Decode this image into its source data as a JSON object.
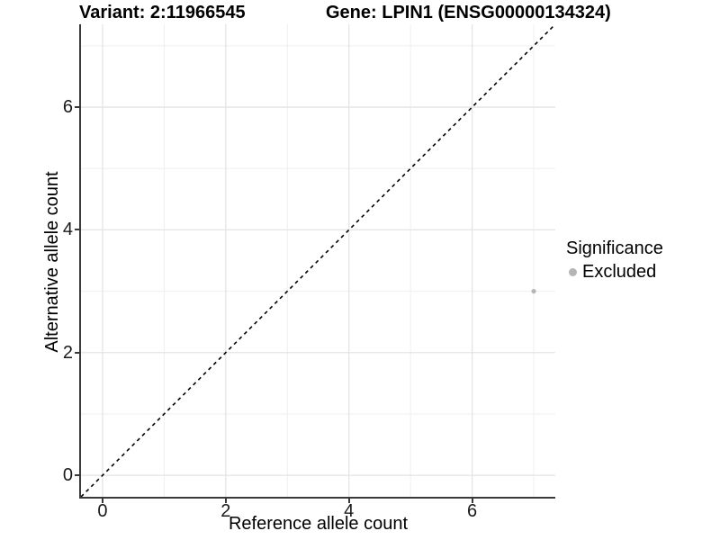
{
  "titles": {
    "variant": "Variant: 2:11966545",
    "gene": "Gene: LPIN1 (ENSG00000134324)"
  },
  "chart_data": {
    "type": "scatter",
    "xlabel": "Reference allele count",
    "ylabel": "Alternative allele count",
    "xlim": [
      -0.35,
      7.35
    ],
    "ylim": [
      -0.35,
      7.35
    ],
    "xticks": [
      0,
      2,
      4,
      6
    ],
    "yticks": [
      0,
      2,
      4,
      6
    ],
    "xminor": [
      1,
      3,
      5,
      7
    ],
    "yminor": [
      1,
      3,
      5,
      7
    ],
    "grid": true,
    "points": [
      {
        "x": 7,
        "y": 3,
        "significance": "Excluded"
      }
    ],
    "reference_line": {
      "type": "identity",
      "style": "dashed",
      "color": "#000000"
    },
    "legend": {
      "title": "Significance",
      "position": "right",
      "items": [
        {
          "label": "Excluded",
          "color": "#b5b5b5"
        }
      ]
    },
    "colors": {
      "point": "#b5b5b5",
      "grid_major": "#e4e4e4",
      "grid_minor": "#efefef",
      "axis_line": "#3a3a3a",
      "background": "#ffffff"
    }
  }
}
